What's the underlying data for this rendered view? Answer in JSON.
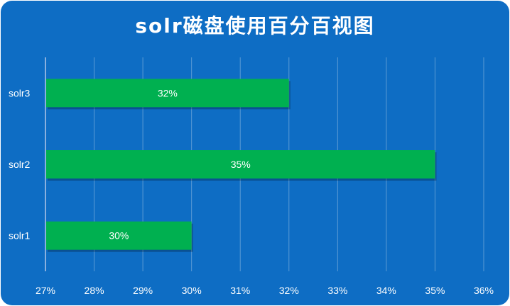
{
  "colors": {
    "background": "#0E6DC4",
    "bar": "#00B050",
    "gridline": "#5B9BD5",
    "axis": "#B4C7E7",
    "text": "#FFFFFF"
  },
  "chart_data": {
    "type": "bar",
    "orientation": "horizontal",
    "title": "solr磁盘使用百分百视图",
    "xlabel": "",
    "ylabel": "",
    "categories": [
      "solr3",
      "solr2",
      "solr1"
    ],
    "values": [
      32,
      35,
      30
    ],
    "data_labels": [
      "32%",
      "35%",
      "30%"
    ],
    "xlim": [
      27,
      36
    ],
    "xticks": [
      "27%",
      "28%",
      "29%",
      "30%",
      "31%",
      "32%",
      "33%",
      "34%",
      "35%",
      "36%"
    ],
    "grid": true,
    "legend": "none"
  }
}
